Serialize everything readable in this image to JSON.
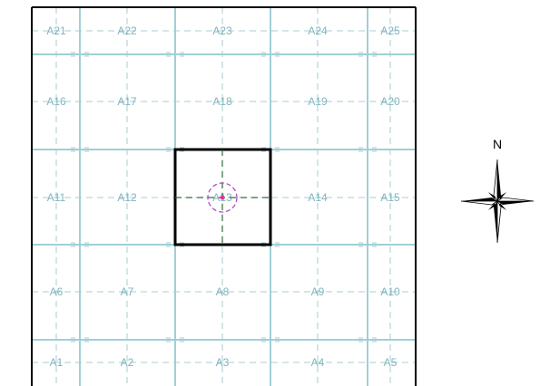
{
  "map": {
    "rows": [
      [
        "A21",
        "A22",
        "A23",
        "A24",
        "A25"
      ],
      [
        "A16",
        "A17",
        "A18",
        "A19",
        "A20"
      ],
      [
        "A11",
        "A12",
        "A13",
        "A14",
        "A15"
      ],
      [
        "A6",
        "A7",
        "A8",
        "A9",
        "A10"
      ],
      [
        "A1",
        "A2",
        "A3",
        "A4",
        "A5"
      ]
    ],
    "highlighted_cell": "A13",
    "colors": {
      "grid_major": "#9fd0d6",
      "grid_minor": "#a9cdd3",
      "label": "#7fb5bf",
      "highlight_border": "#000000",
      "crosshair": "#2f6f3a",
      "marker_ring": "#b04cc8",
      "marker_dot": "#e8309a"
    }
  },
  "compass": {
    "north_label": "N"
  }
}
